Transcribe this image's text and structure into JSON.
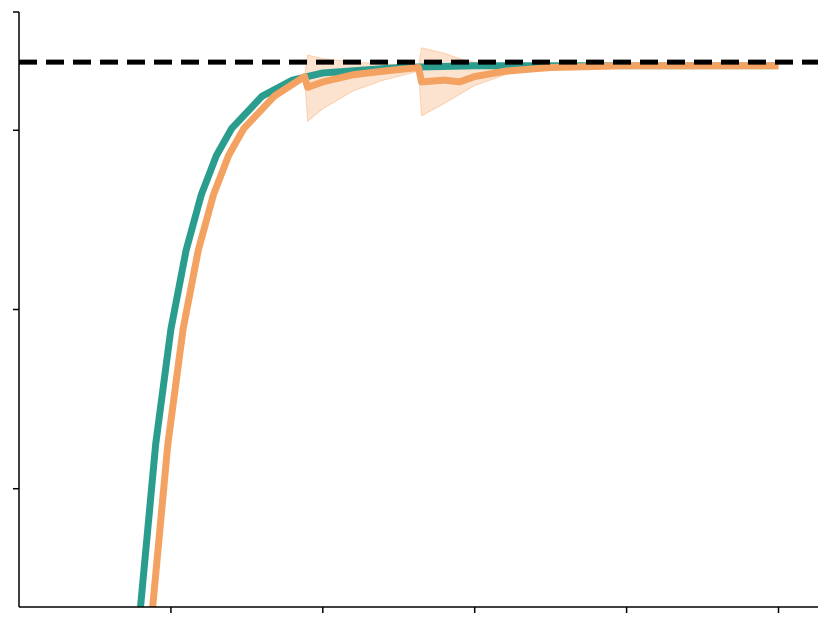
{
  "chart_data": {
    "type": "line",
    "xlim": [
      0,
      5.26
    ],
    "xticks": [
      1,
      2,
      3,
      4,
      5
    ],
    "ylim": [
      0.34,
      3.66
    ],
    "yticks": [
      1,
      2,
      3,
      3.66
    ],
    "hline": {
      "value": 3.38,
      "color": "#000000",
      "dashed": true
    },
    "series": [
      {
        "color": "#2a9d8f",
        "x": [
          0.8,
          0.9,
          1.0,
          1.1,
          1.2,
          1.3,
          1.4,
          1.6,
          1.8,
          2.0,
          2.5,
          3.0,
          3.5,
          4.0,
          4.5,
          5.0
        ],
        "values": [
          0.34,
          1.25,
          1.89,
          2.33,
          2.64,
          2.86,
          3.01,
          3.19,
          3.28,
          3.32,
          3.35,
          3.36,
          3.36,
          3.36,
          3.36,
          3.36
        ]
      },
      {
        "color": "#f4a261",
        "x": [
          0.88,
          0.98,
          1.08,
          1.18,
          1.28,
          1.38,
          1.48,
          1.68,
          1.88,
          1.9,
          2.0,
          2.2,
          2.4,
          2.63,
          2.65,
          2.8,
          2.9,
          3.0,
          3.2,
          3.5,
          4.0,
          4.5,
          5.0
        ],
        "values": [
          0.34,
          1.25,
          1.89,
          2.33,
          2.64,
          2.86,
          3.01,
          3.19,
          3.3,
          3.24,
          3.27,
          3.31,
          3.33,
          3.35,
          3.27,
          3.28,
          3.27,
          3.3,
          3.33,
          3.35,
          3.36,
          3.36,
          3.36
        ],
        "lower": [
          null,
          null,
          null,
          null,
          null,
          null,
          null,
          null,
          3.3,
          3.05,
          3.12,
          3.22,
          3.28,
          3.33,
          3.08,
          3.15,
          3.2,
          3.25,
          3.31,
          3.34,
          3.36,
          3.36,
          3.36
        ],
        "upper": [
          null,
          null,
          null,
          null,
          null,
          null,
          null,
          null,
          3.3,
          3.42,
          3.4,
          3.38,
          3.37,
          3.36,
          3.46,
          3.43,
          3.4,
          3.38,
          3.36,
          3.36,
          3.36,
          3.36,
          3.36
        ]
      }
    ]
  }
}
